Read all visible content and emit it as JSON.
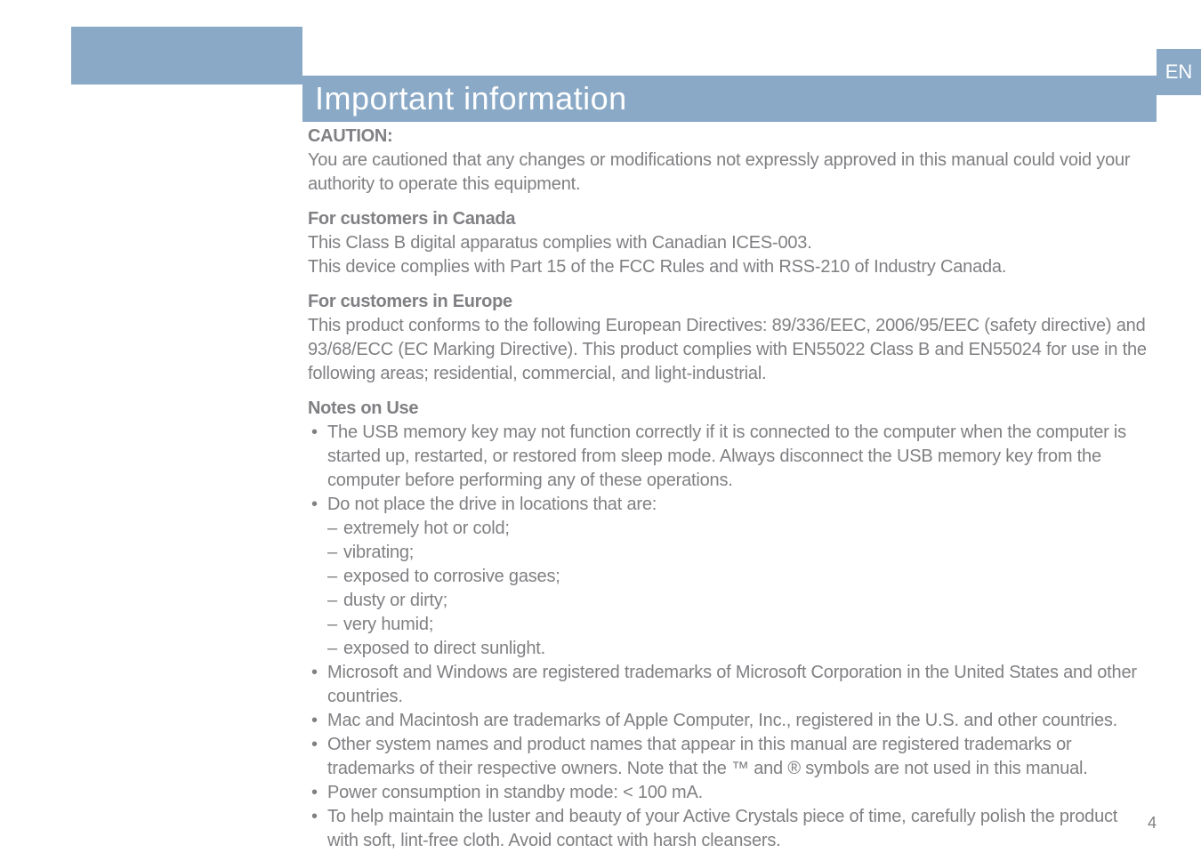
{
  "header": {
    "title": "Important information",
    "language_tab": "EN"
  },
  "colors": {
    "header_bg": "#8aa9c7",
    "header_text": "#ffffff",
    "body_text": "#808084",
    "page_bg": "#ffffff"
  },
  "sections": {
    "caution": {
      "heading": "CAUTION:",
      "body": "You are cautioned that any changes or modifications not expressly approved in this manual could void your authority to operate this equipment."
    },
    "canada": {
      "heading": "For customers in Canada",
      "line1": "This Class B digital apparatus complies with Canadian ICES-003.",
      "line2": "This device complies with Part 15 of the FCC Rules and with RSS-210 of Industry Canada."
    },
    "europe": {
      "heading": "For customers in Europe",
      "body": "This product conforms to the following European Directives: 89/336/EEC, 2006/95/EEC (safety directive) and 93/68/ECC (EC Marking Directive). This product complies with EN55022 Class B and EN55024 for use in the following areas; residential, commercial, and light-industrial."
    },
    "notes": {
      "heading": "Notes on Use",
      "items": [
        "The USB memory key may not function correctly if it is connected to the computer when the computer is started up, restarted, or restored from sleep mode. Always disconnect the USB memory key from the computer before performing any of these operations.",
        "Do not place the drive in locations that are:",
        "Microsoft and Windows are registered trademarks of Microsoft Corporation in the United States and other countries.",
        "Mac and Macintosh are trademarks of Apple Computer, Inc., registered in the U.S. and other countries.",
        "Other system names and product names that appear in this manual are registered trademarks or trademarks of their respective owners. Note that the ™ and ® symbols are not used in this manual.",
        "Power consumption in standby mode: < 100 mA.",
        "To help maintain the luster and beauty of your Active Crystals piece of time, carefully polish the product with soft, lint-free cloth. Avoid contact with harsh cleansers."
      ],
      "locations_sublist": [
        "extremely hot or cold;",
        "vibrating;",
        "exposed to corrosive gases;",
        "dusty or dirty;",
        "very humid;",
        "exposed to direct sunlight."
      ]
    }
  },
  "page_number": "4",
  "typography": {
    "title_fontsize": 36,
    "title_weight": 300,
    "heading_fontsize": 20,
    "heading_weight": 700,
    "body_fontsize": 20,
    "body_weight": 400,
    "line_height": 1.35
  }
}
